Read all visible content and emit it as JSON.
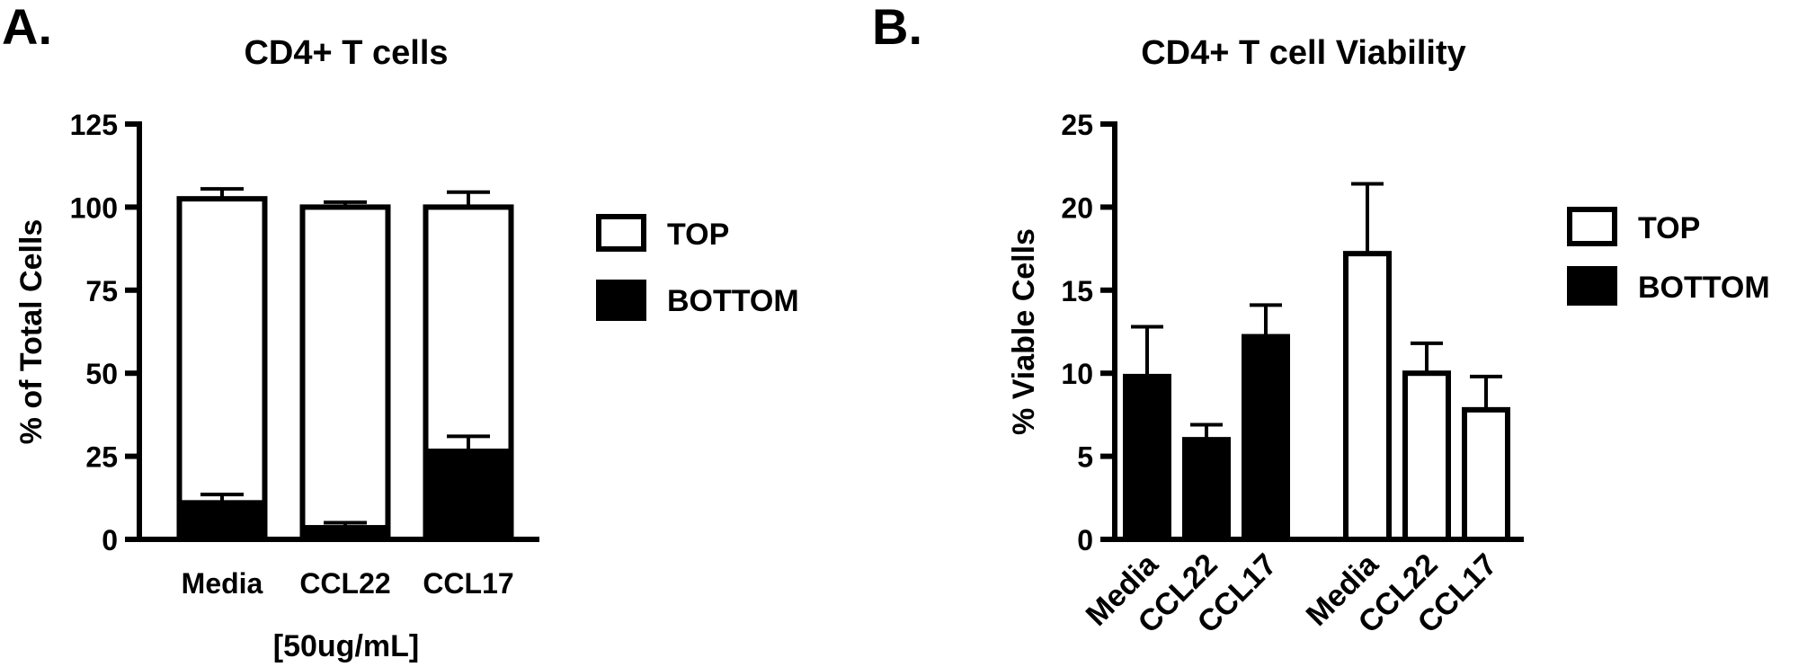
{
  "panels": {
    "a": {
      "letter": "A.",
      "title": "CD4+ T cells"
    },
    "b": {
      "letter": "B.",
      "title": "CD4+ T cell Viability"
    }
  },
  "chart_data": [
    {
      "type": "bar",
      "stacked": true,
      "title": "CD4+ T cells",
      "ylabel": "% of Total Cells",
      "xlabel": "[50ug/mL]",
      "ylim": [
        0,
        125
      ],
      "yticks": [
        0,
        25,
        50,
        75,
        100,
        125
      ],
      "categories": [
        "Media",
        "CCL22",
        "CCL17"
      ],
      "series": [
        {
          "name": "BOTTOM",
          "fill": "#000000",
          "values": [
            11,
            3.5,
            26.5
          ],
          "error": [
            2.5,
            1.5,
            4.5
          ]
        },
        {
          "name": "TOP",
          "fill": "#ffffff",
          "values": [
            91.5,
            96.5,
            73.5
          ],
          "error": [
            3,
            1.5,
            4.5
          ]
        }
      ],
      "legend": {
        "position": "right",
        "entries": [
          "TOP",
          "BOTTOM"
        ]
      }
    },
    {
      "type": "bar",
      "title": "CD4+ T cell Viability",
      "ylabel": "% Viable Cells",
      "ylim": [
        0,
        25
      ],
      "yticks": [
        0,
        5,
        10,
        15,
        20,
        25
      ],
      "categories": [
        "Media",
        "CCL22",
        "CCL17",
        "Media",
        "CCL22",
        "CCL17"
      ],
      "bars": [
        {
          "series": "BOTTOM",
          "value": 9.8,
          "error": 3.0
        },
        {
          "series": "BOTTOM",
          "value": 6.0,
          "error": 0.9
        },
        {
          "series": "BOTTOM",
          "value": 12.2,
          "error": 1.9
        },
        {
          "series": "TOP",
          "value": 17.2,
          "error": 4.2
        },
        {
          "series": "TOP",
          "value": 10.0,
          "error": 1.8
        },
        {
          "series": "TOP",
          "value": 7.8,
          "error": 2.0
        }
      ],
      "series_colors": {
        "TOP": "#ffffff",
        "BOTTOM": "#000000"
      },
      "legend": {
        "position": "right",
        "entries": [
          "TOP",
          "BOTTOM"
        ]
      }
    }
  ]
}
